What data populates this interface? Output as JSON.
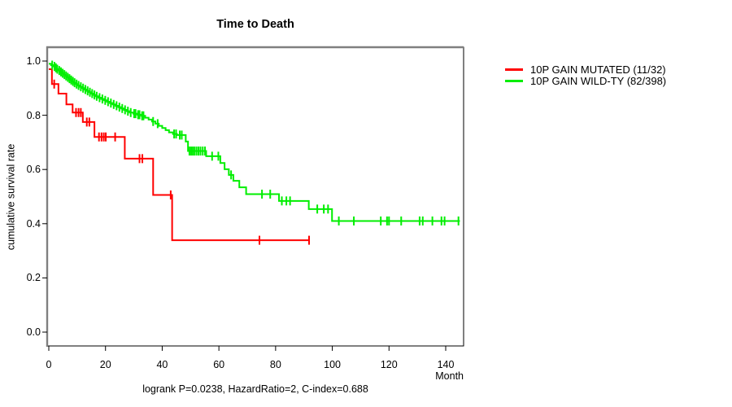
{
  "chart_data": {
    "type": "line",
    "subtype": "kaplan-meier-step",
    "title": "Time to Death",
    "xlabel": "Month",
    "ylabel": "cumulative survival rate",
    "annotation": "logrank P=0.0238, HazardRatio=2, C-index=0.688",
    "xlim": [
      0,
      146
    ],
    "ylim": [
      0,
      1.05
    ],
    "grid": false,
    "legend_position": "right-outside",
    "x_ticks": [
      0,
      20,
      40,
      60,
      80,
      100,
      120,
      140
    ],
    "x_tick_labels": [
      "0",
      "20",
      "40",
      "60",
      "80",
      "100",
      "120",
      "140"
    ],
    "y_ticks": [
      0.0,
      0.2,
      0.4,
      0.6,
      0.8,
      1.0
    ],
    "y_tick_labels": [
      "0.0",
      "0.2",
      "0.4",
      "0.6",
      "0.8",
      "1.0"
    ],
    "series": [
      {
        "name": "10P GAIN MUTATED (11/32)",
        "color": "#ff0000",
        "steps": [
          [
            0,
            0.97
          ],
          [
            1.1,
            0.915
          ],
          [
            3.4,
            0.88
          ],
          [
            6.2,
            0.84
          ],
          [
            8.4,
            0.81
          ],
          [
            12,
            0.775
          ],
          [
            16.1,
            0.72
          ],
          [
            26.8,
            0.64
          ],
          [
            36.8,
            0.506
          ],
          [
            43.5,
            0.339
          ]
        ],
        "end_month": 92,
        "censor_months": [
          1.9,
          9.6,
          10.5,
          11.3,
          13.4,
          14.3,
          17.7,
          18.6,
          19.4,
          20.1,
          23.4,
          32.0,
          33.0,
          43.0,
          74.3,
          91.8
        ]
      },
      {
        "name": "10P GAIN WILD-TY (82/398)",
        "color": "#00ee00",
        "steps": [
          [
            0,
            0.99
          ],
          [
            0.8,
            0.985
          ],
          [
            1.5,
            0.98
          ],
          [
            2.2,
            0.975
          ],
          [
            2.8,
            0.97
          ],
          [
            3.4,
            0.965
          ],
          [
            4,
            0.96
          ],
          [
            4.6,
            0.955
          ],
          [
            5.2,
            0.95
          ],
          [
            5.8,
            0.945
          ],
          [
            6.4,
            0.94
          ],
          [
            7,
            0.935
          ],
          [
            7.6,
            0.93
          ],
          [
            8.2,
            0.925
          ],
          [
            8.8,
            0.92
          ],
          [
            9.5,
            0.915
          ],
          [
            10.2,
            0.91
          ],
          [
            11,
            0.905
          ],
          [
            11.8,
            0.9
          ],
          [
            12.6,
            0.895
          ],
          [
            13.4,
            0.89
          ],
          [
            14.2,
            0.885
          ],
          [
            15,
            0.88
          ],
          [
            15.8,
            0.875
          ],
          [
            16.6,
            0.87
          ],
          [
            17.5,
            0.865
          ],
          [
            18.5,
            0.86
          ],
          [
            19.5,
            0.855
          ],
          [
            20.5,
            0.85
          ],
          [
            21.5,
            0.845
          ],
          [
            22.5,
            0.84
          ],
          [
            23.5,
            0.835
          ],
          [
            24.5,
            0.83
          ],
          [
            25.5,
            0.825
          ],
          [
            26.5,
            0.82
          ],
          [
            27.5,
            0.815
          ],
          [
            28.5,
            0.81
          ],
          [
            29.8,
            0.806
          ],
          [
            31.2,
            0.802
          ],
          [
            32.6,
            0.798
          ],
          [
            34,
            0.791
          ],
          [
            35.2,
            0.784
          ],
          [
            36.4,
            0.777
          ],
          [
            37.6,
            0.769
          ],
          [
            38.8,
            0.761
          ],
          [
            40,
            0.753
          ],
          [
            41.2,
            0.745
          ],
          [
            42.4,
            0.737
          ],
          [
            43.8,
            0.731
          ],
          [
            45.2,
            0.727
          ],
          [
            48.3,
            0.703
          ],
          [
            49.1,
            0.668
          ],
          [
            55.5,
            0.649
          ],
          [
            60.5,
            0.624
          ],
          [
            62,
            0.601
          ],
          [
            63.5,
            0.58
          ],
          [
            65.1,
            0.558
          ],
          [
            67.2,
            0.534
          ],
          [
            69.6,
            0.509
          ],
          [
            81.2,
            0.484
          ],
          [
            91.7,
            0.454
          ],
          [
            99.9,
            0.41
          ]
        ],
        "end_month": 145,
        "censor_months": [
          1.2,
          2.0,
          2.5,
          3.0,
          3.7,
          4.3,
          4.9,
          5.5,
          6.1,
          6.7,
          7.3,
          7.9,
          8.5,
          9.1,
          9.8,
          10.5,
          11.3,
          12.1,
          12.9,
          13.7,
          14.5,
          15.3,
          16.1,
          16.9,
          17.9,
          18.9,
          19.9,
          20.9,
          21.9,
          22.9,
          23.9,
          24.9,
          25.9,
          26.9,
          27.9,
          28.9,
          30.1,
          30.6,
          31.5,
          32.0,
          32.9,
          33.4,
          36.8,
          38.4,
          44.2,
          44.9,
          46.2,
          46.9,
          49.6,
          50.2,
          50.8,
          51.4,
          52.1,
          52.8,
          53.5,
          54.3,
          55.1,
          57.6,
          59.8,
          64.3,
          75.2,
          78.1,
          82.2,
          83.8,
          85.1,
          94.7,
          97.0,
          98.5,
          102.3,
          107.6,
          117.1,
          119.3,
          120.0,
          124.3,
          130.8,
          131.9,
          135.3,
          138.5,
          139.6,
          144.5
        ]
      }
    ]
  }
}
